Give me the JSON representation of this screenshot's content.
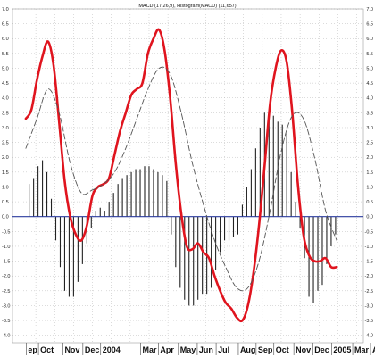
{
  "chart_data": {
    "type": "line",
    "title": "MACD (17,26,9), Histogram(MACD) (11,657)",
    "xlabel": "",
    "ylabel": "",
    "ylim": [
      -4.25,
      7.0
    ],
    "yticks": [
      7.0,
      6.5,
      6.0,
      5.5,
      5.0,
      4.5,
      4.0,
      3.5,
      3.0,
      2.5,
      2.0,
      1.5,
      1.0,
      0.5,
      0.0,
      -0.5,
      -1.0,
      -1.5,
      -2.0,
      -2.5,
      -3.0,
      -3.5,
      -4.0
    ],
    "ytick_labels": [
      "7.0",
      "6.5",
      "6.0",
      "5.5",
      "5.0",
      "4.5",
      "4.0",
      "3.5",
      "3.0",
      "2.5",
      "2.0",
      "1.5",
      "1.0",
      "0.5",
      "0.0",
      "-0.5",
      "-1.0",
      "-1.5",
      "-2.0",
      "-2.5",
      "-3.0",
      "-3.5",
      "-4.0"
    ],
    "x_range": [
      0,
      30
    ],
    "x_month_labels": [
      {
        "label": "ep",
        "x": 0.2
      },
      {
        "label": "Oct",
        "x": 1.3
      },
      {
        "label": "Nov",
        "x": 3.5
      },
      {
        "label": "Dec",
        "x": 5.3
      },
      {
        "label": "2004",
        "x": 6.9
      },
      {
        "label": "Mar",
        "x": 10.5
      },
      {
        "label": "Apr",
        "x": 12.1
      },
      {
        "label": "May",
        "x": 13.9
      },
      {
        "label": "Jun",
        "x": 15.6
      },
      {
        "label": "Jul",
        "x": 17.3
      },
      {
        "label": "Aug",
        "x": 19.3
      },
      {
        "label": "Sep",
        "x": 20.9
      },
      {
        "label": "Oct",
        "x": 22.5
      },
      {
        "label": "Nov",
        "x": 24.3
      },
      {
        "label": "Dec",
        "x": 26.0
      },
      {
        "label": "2005",
        "x": 27.7
      },
      {
        "label": "Mar",
        "x": 29.6
      },
      {
        "label": "A",
        "x": 31.2
      }
    ],
    "grid_x": [
      0.9,
      2.6,
      4.3,
      6.0,
      7.7,
      9.4,
      11.1,
      12.8,
      14.5,
      16.2,
      17.9,
      19.6,
      21.3,
      23.0,
      24.7,
      26.4,
      28.1,
      29.8,
      31.5
    ],
    "zero_line": 0,
    "series": [
      {
        "name": "",
        "color": "#e0141e",
        "style": "solid",
        "x": [
          0.0,
          0.5,
          1.0,
          1.5,
          2.0,
          2.5,
          3.0,
          3.5,
          4.0,
          4.5,
          5.0,
          5.5,
          6.0,
          6.5,
          7.0,
          7.5,
          8.0,
          8.5,
          9.0,
          9.5,
          10.0,
          10.5,
          11.0,
          11.5,
          12.0,
          12.5,
          13.0,
          13.5,
          14.0,
          14.5,
          15.0,
          15.5,
          16.0,
          16.5,
          17.0,
          17.5,
          18.0,
          18.5,
          19.0,
          19.5,
          20.0,
          20.5,
          21.0,
          21.5,
          22.0,
          22.5,
          23.0,
          23.5,
          24.0,
          24.5,
          25.0,
          25.5,
          26.0,
          26.5,
          27.0,
          27.5,
          28.0
        ],
        "values": [
          3.3,
          3.6,
          4.6,
          5.4,
          5.9,
          5.1,
          3.2,
          1.2,
          0.0,
          -0.6,
          -0.8,
          -0.3,
          0.7,
          1.0,
          1.1,
          1.3,
          2.1,
          2.9,
          3.5,
          4.1,
          4.3,
          4.5,
          5.5,
          6.0,
          6.3,
          5.6,
          4.0,
          1.8,
          0.1,
          -1.0,
          -1.1,
          -0.9,
          -1.2,
          -1.4,
          -2.0,
          -2.5,
          -2.9,
          -3.1,
          -3.4,
          -3.5,
          -3.0,
          -1.9,
          -0.3,
          1.7,
          3.8,
          5.0,
          5.6,
          5.2,
          3.5,
          1.1,
          -0.6,
          -1.3,
          -1.5,
          -1.5,
          -1.4,
          -1.7,
          -1.7
        ]
      },
      {
        "name": "",
        "color": "#555555",
        "style": "dashed",
        "x": [
          0.0,
          1.0,
          2.0,
          3.0,
          4.0,
          5.0,
          6.0,
          7.0,
          8.0,
          9.0,
          10.0,
          11.0,
          12.0,
          13.0,
          14.0,
          15.0,
          16.0,
          17.0,
          18.0,
          19.0,
          20.0,
          21.0,
          22.0,
          23.0,
          24.0,
          25.0,
          26.0,
          27.0,
          28.0
        ],
        "values": [
          2.3,
          3.3,
          4.3,
          3.5,
          1.8,
          0.8,
          0.9,
          1.1,
          1.5,
          2.3,
          3.3,
          4.3,
          5.0,
          4.8,
          3.5,
          1.8,
          0.4,
          -0.8,
          -1.7,
          -2.4,
          -2.4,
          -1.5,
          0.2,
          2.2,
          3.4,
          3.3,
          2.0,
          0.2,
          -0.8
        ]
      }
    ],
    "histogram": {
      "color": "#222222",
      "x": [
        0.3,
        0.7,
        1.1,
        1.5,
        1.9,
        2.3,
        2.7,
        3.1,
        3.5,
        3.9,
        4.3,
        4.7,
        5.1,
        5.5,
        5.9,
        6.3,
        6.7,
        7.1,
        7.5,
        7.9,
        8.3,
        8.7,
        9.1,
        9.5,
        9.9,
        10.3,
        10.7,
        11.1,
        11.5,
        11.9,
        12.3,
        12.7,
        13.1,
        13.5,
        13.9,
        14.3,
        14.7,
        15.1,
        15.5,
        15.9,
        16.3,
        16.7,
        17.1,
        17.5,
        17.9,
        18.3,
        18.7,
        19.1,
        19.5,
        19.9,
        20.3,
        20.7,
        21.1,
        21.5,
        21.9,
        22.3,
        22.7,
        23.1,
        23.5,
        23.9,
        24.3,
        24.7,
        25.1,
        25.5,
        25.9,
        26.3,
        26.7,
        27.1,
        27.5,
        27.9
      ],
      "values": [
        1.1,
        1.3,
        1.7,
        1.9,
        1.5,
        0.6,
        -0.8,
        -1.7,
        -2.5,
        -2.7,
        -2.7,
        -2.2,
        -1.6,
        -0.9,
        -0.4,
        0.2,
        0.3,
        0.2,
        0.5,
        0.8,
        1.1,
        1.3,
        1.4,
        1.5,
        1.6,
        1.6,
        1.7,
        1.7,
        1.6,
        1.5,
        1.4,
        1.2,
        -0.6,
        -1.7,
        -2.4,
        -2.8,
        -3.0,
        -3.0,
        -2.8,
        -2.6,
        -2.6,
        -2.4,
        -1.8,
        -1.2,
        -0.8,
        -0.8,
        -0.7,
        -0.6,
        0.4,
        1.0,
        1.6,
        2.3,
        3.0,
        3.5,
        3.5,
        3.4,
        3.2,
        3.1,
        2.8,
        1.5,
        0.5,
        -0.4,
        -1.4,
        -2.7,
        -2.9,
        -2.5,
        -2.3,
        -1.6,
        -1.0,
        -0.6
      ]
    }
  }
}
